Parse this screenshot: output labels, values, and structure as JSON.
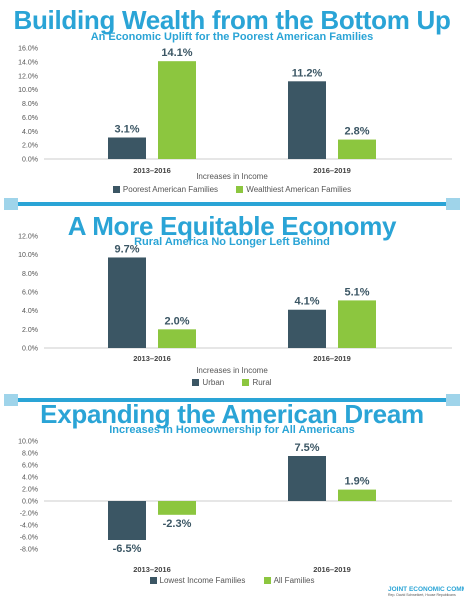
{
  "colors": {
    "dark": "#3b5664",
    "green": "#8cc63f",
    "accent": "#2aa4d6"
  },
  "chart_data": [
    {
      "type": "bar",
      "title": "Building Wealth from the Bottom Up",
      "subtitle": "An Economic Uplift for the Poorest American Families",
      "xlabel": "Increases in Income",
      "ylabel": "",
      "categories": [
        "2013–2016",
        "2016–2019"
      ],
      "series": [
        {
          "name": "Poorest American Families",
          "values": [
            3.1,
            11.2
          ],
          "labels": [
            "3.1%",
            "11.2%"
          ]
        },
        {
          "name": "Wealthiest American Families",
          "values": [
            14.1,
            2.8
          ],
          "labels": [
            "14.1%",
            "2.8%"
          ]
        }
      ],
      "yticks": [
        "0.0%",
        "2.0%",
        "4.0%",
        "6.0%",
        "8.0%",
        "10.0%",
        "12.0%",
        "14.0%",
        "16.0%"
      ],
      "ylim": [
        0,
        16
      ],
      "legend": "bottom"
    },
    {
      "type": "bar",
      "title": "A More Equitable Economy",
      "subtitle": "Rural America No Longer Left Behind",
      "xlabel": "Increases in Income",
      "ylabel": "",
      "categories": [
        "2013–2016",
        "2016–2019"
      ],
      "series": [
        {
          "name": "Urban",
          "values": [
            9.7,
            4.1
          ],
          "labels": [
            "9.7%",
            "4.1%"
          ]
        },
        {
          "name": "Rural",
          "values": [
            2.0,
            5.1
          ],
          "labels": [
            "2.0%",
            "5.1%"
          ]
        }
      ],
      "yticks": [
        "0.0%",
        "2.0%",
        "4.0%",
        "6.0%",
        "8.0%",
        "10.0%",
        "12.0%"
      ],
      "ylim": [
        0,
        12
      ],
      "legend": "bottom"
    },
    {
      "type": "bar",
      "title": "Expanding the American Dream",
      "subtitle": "Increases in Homeownership for All Americans",
      "xlabel": "",
      "ylabel": "",
      "categories": [
        "2013–2016",
        "2016–2019"
      ],
      "series": [
        {
          "name": "Lowest Income Families",
          "values": [
            -6.5,
            7.5
          ],
          "labels": [
            "-6.5%",
            "7.5%"
          ]
        },
        {
          "name": "All Families",
          "values": [
            -2.3,
            1.9
          ],
          "labels": [
            "-2.3%",
            "1.9%"
          ]
        }
      ],
      "yticks": [
        "-8.0%",
        "-6.0%",
        "-4.0%",
        "-2.0%",
        "0.0%",
        "2.0%",
        "4.0%",
        "6.0%",
        "8.0%",
        "10.0%"
      ],
      "ylim": [
        -8,
        10
      ],
      "legend": "bottom"
    }
  ],
  "logo": {
    "line1": "JOINT ECONOMIC COMMITTEE",
    "line2": "Rep. David Schweikert, House Republicans"
  }
}
